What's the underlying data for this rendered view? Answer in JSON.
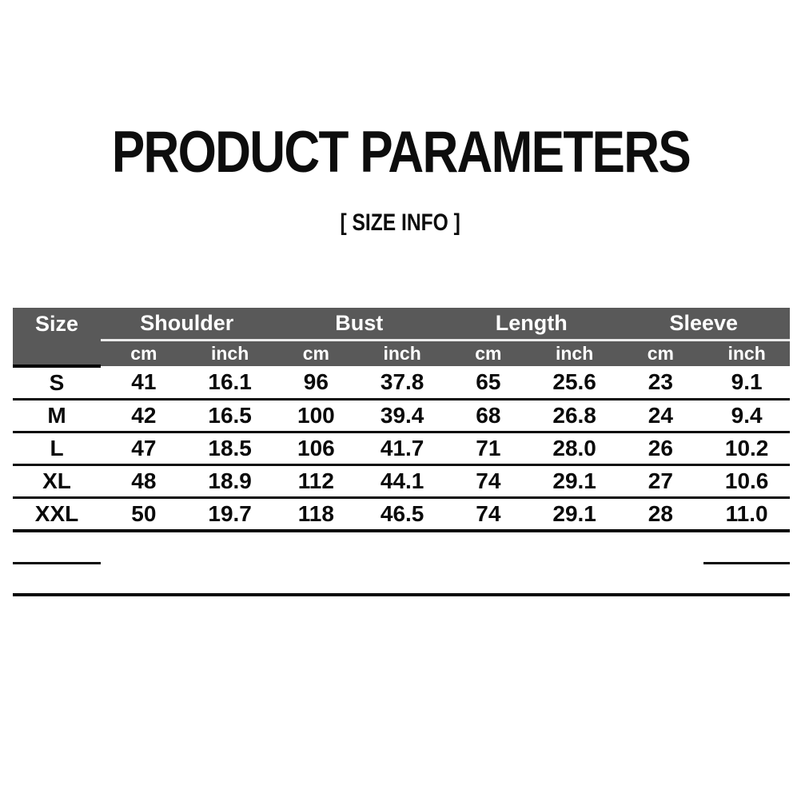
{
  "page": {
    "title": "PRODUCT PARAMETERS",
    "subtitle": "[ SIZE  INFO ]"
  },
  "table": {
    "size_header": "Size",
    "groups": [
      "Shoulder",
      "Bust",
      "Length",
      "Sleeve"
    ],
    "units": [
      "cm",
      "inch",
      "cm",
      "inch",
      "cm",
      "inch",
      "cm",
      "inch"
    ],
    "rows": [
      {
        "size": "S",
        "values": [
          "41",
          "16.1",
          "96",
          "37.8",
          "65",
          "25.6",
          "23",
          "9.1"
        ]
      },
      {
        "size": "M",
        "values": [
          "42",
          "16.5",
          "100",
          "39.4",
          "68",
          "26.8",
          "24",
          "9.4"
        ]
      },
      {
        "size": "L",
        "values": [
          "47",
          "18.5",
          "106",
          "41.7",
          "71",
          "28.0",
          "26",
          "10.2"
        ]
      },
      {
        "size": "XL",
        "values": [
          "48",
          "18.9",
          "112",
          "44.1",
          "74",
          "29.1",
          "27",
          "10.6"
        ]
      },
      {
        "size": "XXL",
        "values": [
          "50",
          "19.7",
          "118",
          "46.5",
          "74",
          "29.1",
          "28",
          "11.0"
        ]
      }
    ],
    "colors": {
      "header_bg": "#595959",
      "header_text": "#ffffff",
      "divider": "#0a0a0a",
      "group_underline": "#ebebeb",
      "page_bg": "#ffffff"
    }
  }
}
